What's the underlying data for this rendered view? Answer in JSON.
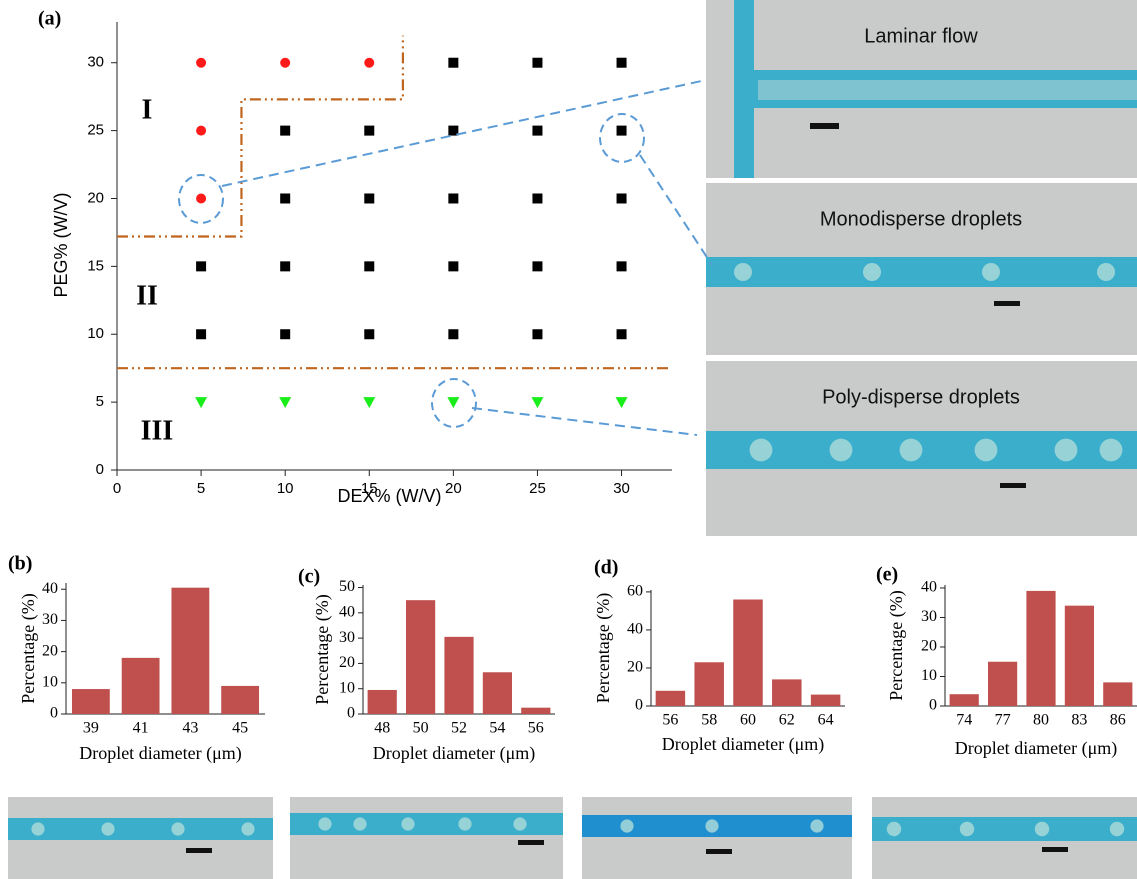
{
  "chart_data": [
    {
      "type": "scatter",
      "panel": "(a)",
      "xlabel": "DEX% (W/V)",
      "ylabel": "PEG% (W/V)",
      "xlim": [
        0,
        33
      ],
      "ylim": [
        0,
        33
      ],
      "xticks": [
        0,
        5,
        10,
        15,
        20,
        25,
        30
      ],
      "yticks": [
        0,
        5,
        10,
        15,
        20,
        25,
        30
      ],
      "series": [
        {
          "color": "#ff1a1a",
          "marker": "circle",
          "x": [
            5,
            10,
            15,
            5,
            5
          ],
          "y": [
            30,
            30,
            30,
            25,
            20
          ]
        },
        {
          "color": "#000000",
          "marker": "square",
          "x": [
            20,
            25,
            30,
            10,
            15,
            20,
            25,
            30,
            10,
            15,
            20,
            25,
            30,
            5,
            10,
            15,
            20,
            25,
            30,
            5,
            10,
            15,
            20,
            25,
            30
          ],
          "y": [
            30,
            30,
            30,
            25,
            25,
            25,
            25,
            25,
            20,
            20,
            20,
            20,
            20,
            15,
            15,
            15,
            15,
            15,
            15,
            10,
            10,
            10,
            10,
            10,
            10
          ]
        },
        {
          "color": "#1aee1a",
          "marker": "triangle",
          "x": [
            5,
            10,
            15,
            20,
            25,
            30
          ],
          "y": [
            5,
            5,
            5,
            5,
            5,
            5
          ]
        }
      ],
      "boundaries": {
        "color": "#c0651e",
        "lines": [
          {
            "x": [
              0,
              7.4,
              7.4,
              17,
              17
            ],
            "y": [
              17.2,
              17.2,
              27.3,
              27.3,
              32
            ]
          },
          {
            "x": [
              0,
              33
            ],
            "y": [
              7.5,
              7.5
            ]
          }
        ]
      },
      "annotations": [
        "I",
        "II",
        "III"
      ]
    },
    {
      "type": "bar",
      "panel": "(b)",
      "xlabel": "Droplet diameter (μm)",
      "ylabel": "Percentage (%)",
      "color": "#c0504d",
      "categories": [
        "39",
        "41",
        "43",
        "45"
      ],
      "values": [
        8,
        18,
        40.5,
        9
      ],
      "ylim": [
        0,
        42
      ],
      "yticks": [
        0,
        10,
        20,
        30,
        40
      ]
    },
    {
      "type": "bar",
      "panel": "(c)",
      "xlabel": "Droplet diameter (μm)",
      "ylabel": "Percentage (%)",
      "color": "#c0504d",
      "categories": [
        "48",
        "50",
        "52",
        "54",
        "56"
      ],
      "values": [
        9.5,
        45,
        30.5,
        16.5,
        2.5
      ],
      "ylim": [
        0,
        51
      ],
      "yticks": [
        0,
        10,
        20,
        30,
        40,
        50
      ]
    },
    {
      "type": "bar",
      "panel": "(d)",
      "xlabel": "Droplet diameter (μm)",
      "ylabel": "Percentage (%)",
      "color": "#c0504d",
      "categories": [
        "56",
        "58",
        "60",
        "62",
        "64"
      ],
      "values": [
        8,
        23,
        56,
        14,
        6
      ],
      "ylim": [
        0,
        61
      ],
      "yticks": [
        0,
        20,
        40,
        60
      ]
    },
    {
      "type": "bar",
      "panel": "(e)",
      "xlabel": "Droplet diameter (μm)",
      "ylabel": "Percentage (%)",
      "color": "#c0504d",
      "categories": [
        "74",
        "77",
        "80",
        "83",
        "86"
      ],
      "values": [
        4,
        15,
        39,
        34,
        8
      ],
      "ylim": [
        0,
        41
      ],
      "yticks": [
        0,
        10,
        20,
        30,
        40
      ]
    }
  ],
  "micrographs": {
    "captions": [
      "Laminar flow",
      "Monodisperse droplets",
      "Poly-disperse droplets"
    ]
  }
}
